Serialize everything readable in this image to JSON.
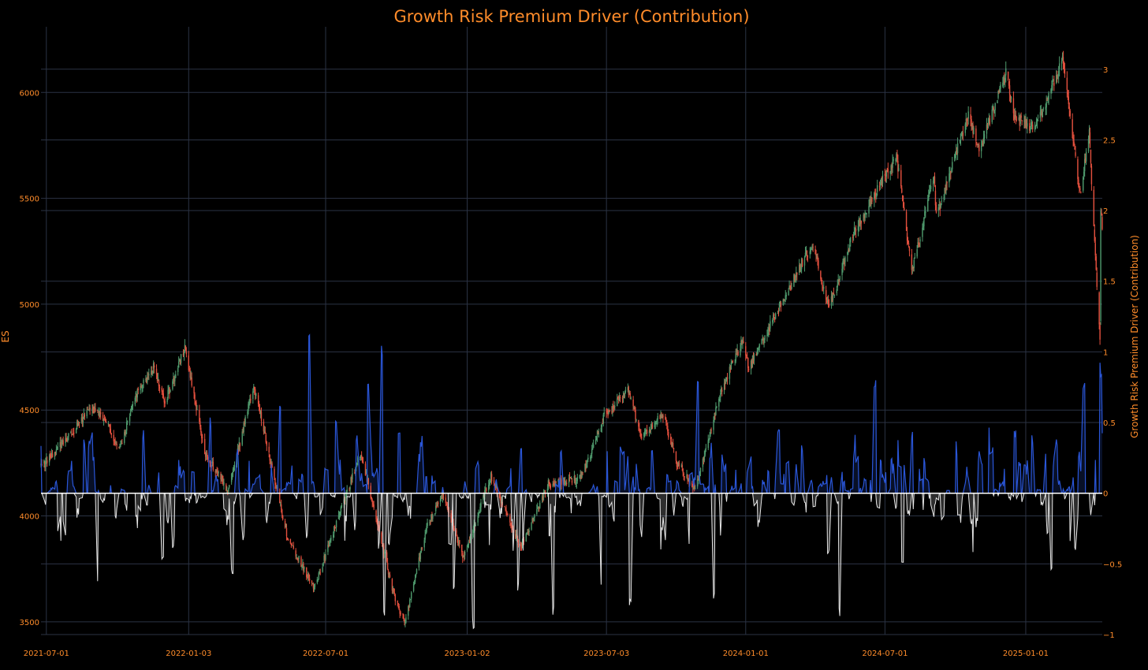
{
  "chart_data": {
    "type": "line",
    "title": "Growth Risk Premium Driver (Contribution)",
    "left_axis": {
      "label": "ES",
      "range": [
        3440,
        6310
      ],
      "ticks": [
        3500,
        4000,
        4500,
        5000,
        5500,
        6000
      ]
    },
    "right_axis": {
      "label": "Growth Risk Premium Driver (Contribution)",
      "range": [
        -1.0,
        3.3
      ],
      "ticks": [
        -1,
        -0.5,
        0,
        0.5,
        1,
        1.5,
        2,
        2.5,
        3
      ],
      "tick_labels": [
        "−1",
        "−0.5",
        "0",
        "0.5",
        "1",
        "1.5",
        "2",
        "2.5",
        "3"
      ]
    },
    "x_axis": {
      "range": [
        "2021-06-24",
        "2025-04-11"
      ],
      "ticks": [
        "2021-07-01",
        "2022-01-03",
        "2022-07-01",
        "2023-01-02",
        "2023-07-03",
        "2024-01-01",
        "2024-07-01",
        "2025-01-01"
      ]
    },
    "grid": true,
    "colors": {
      "background": "#000000",
      "grid": "#2b3344",
      "text": "#ff8c2a",
      "candle_up": "#4f9a6d",
      "candle_down": "#e3503e",
      "positive_line": "#2a56d8",
      "negative_line": "#e6e6e6",
      "zero_line": "#ffffff"
    },
    "series": [
      {
        "name": "ES",
        "kind": "candlestick",
        "axis": "left",
        "anchors": [
          [
            "2021-06-24",
            4230
          ],
          [
            "2021-07-05",
            4270
          ],
          [
            "2021-08-02",
            4390
          ],
          [
            "2021-09-01",
            4520
          ],
          [
            "2021-09-20",
            4420
          ],
          [
            "2021-10-04",
            4310
          ],
          [
            "2021-10-25",
            4560
          ],
          [
            "2021-11-18",
            4700
          ],
          [
            "2021-12-03",
            4540
          ],
          [
            "2021-12-29",
            4790
          ],
          [
            "2022-01-24",
            4300
          ],
          [
            "2022-02-24",
            4120
          ],
          [
            "2022-03-29",
            4620
          ],
          [
            "2022-05-12",
            3900
          ],
          [
            "2022-06-16",
            3660
          ],
          [
            "2022-08-16",
            4300
          ],
          [
            "2022-09-30",
            3600
          ],
          [
            "2022-10-13",
            3500
          ],
          [
            "2022-11-10",
            3950
          ],
          [
            "2022-12-01",
            4100
          ],
          [
            "2022-12-28",
            3800
          ],
          [
            "2023-02-02",
            4190
          ],
          [
            "2023-03-13",
            3850
          ],
          [
            "2023-04-18",
            4150
          ],
          [
            "2023-05-31",
            4180
          ],
          [
            "2023-06-30",
            4470
          ],
          [
            "2023-07-31",
            4600
          ],
          [
            "2023-08-18",
            4370
          ],
          [
            "2023-09-15",
            4480
          ],
          [
            "2023-10-03",
            4250
          ],
          [
            "2023-10-27",
            4130
          ],
          [
            "2023-12-01",
            4600
          ],
          [
            "2023-12-28",
            4830
          ],
          [
            "2024-01-05",
            4700
          ],
          [
            "2024-03-28",
            5290
          ],
          [
            "2024-04-19",
            4980
          ],
          [
            "2024-05-21",
            5340
          ],
          [
            "2024-07-16",
            5700
          ],
          [
            "2024-08-05",
            5150
          ],
          [
            "2024-09-03",
            5600
          ],
          [
            "2024-09-06",
            5410
          ],
          [
            "2024-10-18",
            5900
          ],
          [
            "2024-11-01",
            5730
          ],
          [
            "2024-12-06",
            6090
          ],
          [
            "2024-12-18",
            5880
          ],
          [
            "2025-01-13",
            5830
          ],
          [
            "2025-02-19",
            6160
          ],
          [
            "2025-03-10",
            5600
          ],
          [
            "2025-03-13",
            5520
          ],
          [
            "2025-03-25",
            5800
          ],
          [
            "2025-04-04",
            5070
          ],
          [
            "2025-04-08",
            4850
          ],
          [
            "2025-04-09",
            5460
          ],
          [
            "2025-04-11",
            5370
          ]
        ]
      },
      {
        "name": "Growth Risk Premium Driver (Contribution)",
        "kind": "spike-line",
        "axis": "right",
        "positive_peaks": [
          [
            "2022-06-10",
            1.12
          ],
          [
            "2022-09-12",
            1.12
          ],
          [
            "2022-08-26",
            0.88
          ],
          [
            "2023-10-30",
            0.86
          ],
          [
            "2025-03-18",
            0.84
          ],
          [
            "2025-04-09",
            0.93
          ],
          [
            "2024-06-18",
            0.8
          ],
          [
            "2022-05-02",
            0.65
          ],
          [
            "2021-08-20",
            0.4
          ],
          [
            "2021-11-05",
            0.45
          ],
          [
            "2022-01-31",
            0.55
          ],
          [
            "2022-07-15",
            0.55
          ],
          [
            "2022-10-05",
            0.45
          ],
          [
            "2023-03-13",
            0.35
          ],
          [
            "2023-05-05",
            0.3
          ],
          [
            "2023-07-25",
            0.3
          ],
          [
            "2023-09-01",
            0.35
          ],
          [
            "2024-02-13",
            0.5
          ],
          [
            "2024-03-15",
            0.35
          ],
          [
            "2024-08-05",
            0.45
          ],
          [
            "2024-12-18",
            0.45
          ],
          [
            "2025-01-10",
            0.42
          ]
        ],
        "negative_troughs": [
          [
            "2021-09-05",
            -0.7
          ],
          [
            "2021-11-30",
            -0.5
          ],
          [
            "2022-03-01",
            -0.6
          ],
          [
            "2022-09-16",
            -0.9
          ],
          [
            "2022-12-16",
            -0.75
          ],
          [
            "2023-01-10",
            -1.0
          ],
          [
            "2023-03-10",
            -0.7
          ],
          [
            "2023-04-24",
            -0.9
          ],
          [
            "2023-06-25",
            -0.65
          ],
          [
            "2023-08-03",
            -0.8
          ],
          [
            "2023-11-20",
            -0.82
          ],
          [
            "2024-05-03",
            -0.87
          ],
          [
            "2024-04-18",
            -0.45
          ],
          [
            "2024-07-24",
            -0.55
          ],
          [
            "2025-02-03",
            -0.55
          ],
          [
            "2025-03-01",
            -0.37
          ]
        ]
      }
    ]
  }
}
